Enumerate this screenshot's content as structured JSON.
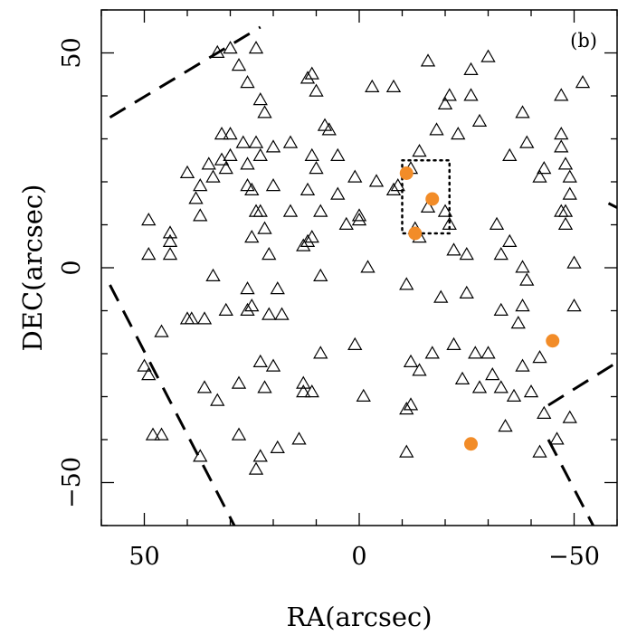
{
  "chart_data": {
    "type": "scatter",
    "panel_label": "(b)",
    "xlabel": "RA(arcsec)",
    "ylabel": "DEC(arcsec)",
    "xlim": [
      60,
      -60
    ],
    "ylim": [
      -60,
      60
    ],
    "x_inverted": true,
    "xticks": [
      {
        "value": 50,
        "label": "50"
      },
      {
        "value": 0,
        "label": "0"
      },
      {
        "value": -50,
        "label": "−50"
      }
    ],
    "yticks": [
      {
        "value": 50,
        "label": "50"
      },
      {
        "value": 0,
        "label": "0"
      },
      {
        "value": -50,
        "label": "−50"
      }
    ],
    "grid": false,
    "colors": {
      "axes": "#000000",
      "highlight": "#f28c28"
    },
    "series": [
      {
        "marker": "open-triangle",
        "color": "#000000",
        "points": [
          [
            33,
            50
          ],
          [
            30,
            51
          ],
          [
            28,
            47
          ],
          [
            26,
            43
          ],
          [
            24,
            51
          ],
          [
            23,
            39
          ],
          [
            22,
            36
          ],
          [
            12,
            44
          ],
          [
            11,
            45
          ],
          [
            10,
            41
          ],
          [
            8,
            33
          ],
          [
            7,
            32
          ],
          [
            -3,
            42
          ],
          [
            -8,
            42
          ],
          [
            -16,
            48
          ],
          [
            -21,
            40
          ],
          [
            -26,
            46
          ],
          [
            -26,
            40
          ],
          [
            -30,
            49
          ],
          [
            -52,
            43
          ],
          [
            -47,
            40
          ],
          [
            32,
            31
          ],
          [
            30,
            31
          ],
          [
            27,
            29
          ],
          [
            24,
            29
          ],
          [
            23,
            26
          ],
          [
            20,
            28
          ],
          [
            16,
            29
          ],
          [
            35,
            24
          ],
          [
            32,
            25
          ],
          [
            31,
            23
          ],
          [
            26,
            24
          ],
          [
            30,
            26
          ],
          [
            40,
            22
          ],
          [
            37,
            19
          ],
          [
            38,
            16
          ],
          [
            34,
            21
          ],
          [
            26,
            19
          ],
          [
            25,
            18
          ],
          [
            20,
            19
          ],
          [
            11,
            26
          ],
          [
            10,
            23
          ],
          [
            5,
            26
          ],
          [
            1,
            21
          ],
          [
            -4,
            20
          ],
          [
            -14,
            27
          ],
          [
            -18,
            32
          ],
          [
            -20,
            38
          ],
          [
            -23,
            31
          ],
          [
            -28,
            34
          ],
          [
            -35,
            26
          ],
          [
            -38,
            36
          ],
          [
            -39,
            29
          ],
          [
            -43,
            23
          ],
          [
            -42,
            21
          ],
          [
            -47,
            31
          ],
          [
            -47,
            28
          ],
          [
            -48,
            24
          ],
          [
            -49,
            21
          ],
          [
            -49,
            17
          ],
          [
            -12,
            23
          ],
          [
            -9,
            19
          ],
          [
            -47,
            13
          ],
          [
            -48,
            13
          ],
          [
            -48,
            10
          ],
          [
            49,
            11
          ],
          [
            44,
            8
          ],
          [
            44,
            6
          ],
          [
            49,
            3
          ],
          [
            44,
            3
          ],
          [
            37,
            12
          ],
          [
            24,
            13
          ],
          [
            25,
            7
          ],
          [
            23,
            13
          ],
          [
            22,
            9
          ],
          [
            21,
            3
          ],
          [
            16,
            13
          ],
          [
            13,
            5
          ],
          [
            12,
            6
          ],
          [
            11,
            7
          ],
          [
            12,
            18
          ],
          [
            9,
            13
          ],
          [
            5,
            17
          ],
          [
            3,
            10
          ],
          [
            0,
            12
          ],
          [
            0,
            11
          ],
          [
            -8,
            18
          ],
          [
            -13,
            9
          ],
          [
            -14,
            7
          ],
          [
            -16,
            14
          ],
          [
            -21,
            10
          ],
          [
            -22,
            4
          ],
          [
            -20,
            13
          ],
          [
            -25,
            3
          ],
          [
            -32,
            10
          ],
          [
            -33,
            3
          ],
          [
            -35,
            6
          ],
          [
            -38,
            0
          ],
          [
            -39,
            -3
          ],
          [
            -50,
            1
          ],
          [
            34,
            -2
          ],
          [
            40,
            -12
          ],
          [
            39,
            -12
          ],
          [
            36,
            -12
          ],
          [
            46,
            -15
          ],
          [
            31,
            -10
          ],
          [
            25,
            -9
          ],
          [
            26,
            -5
          ],
          [
            19,
            -5
          ],
          [
            26,
            -10
          ],
          [
            21,
            -11
          ],
          [
            18,
            -11
          ],
          [
            9,
            -2
          ],
          [
            -2,
            0
          ],
          [
            -11,
            -4
          ],
          [
            -19,
            -7
          ],
          [
            -25,
            -6
          ],
          [
            -38,
            -9
          ],
          [
            -37,
            -13
          ],
          [
            -33,
            -10
          ],
          [
            -50,
            -9
          ],
          [
            50,
            -23
          ],
          [
            49,
            -25
          ],
          [
            48,
            -39
          ],
          [
            46,
            -39
          ],
          [
            36,
            -28
          ],
          [
            33,
            -31
          ],
          [
            28,
            -27
          ],
          [
            23,
            -22
          ],
          [
            20,
            -23
          ],
          [
            22,
            -28
          ],
          [
            13,
            -27
          ],
          [
            13,
            -29
          ],
          [
            11,
            -29
          ],
          [
            9,
            -20
          ],
          [
            1,
            -18
          ],
          [
            -1,
            -30
          ],
          [
            -12,
            -32
          ],
          [
            -12,
            -22
          ],
          [
            -14,
            -24
          ],
          [
            -17,
            -20
          ],
          [
            -22,
            -18
          ],
          [
            -24,
            -26
          ],
          [
            -27,
            -20
          ],
          [
            -28,
            -28
          ],
          [
            -30,
            -20
          ],
          [
            -31,
            -25
          ],
          [
            -33,
            -28
          ],
          [
            -36,
            -30
          ],
          [
            -34,
            -37
          ],
          [
            -38,
            -23
          ],
          [
            -40,
            -29
          ],
          [
            -42,
            -21
          ],
          [
            -43,
            -34
          ],
          [
            -49,
            -35
          ],
          [
            -46,
            -40
          ],
          [
            37,
            -44
          ],
          [
            28,
            -39
          ],
          [
            23,
            -44
          ],
          [
            19,
            -42
          ],
          [
            24,
            -47
          ],
          [
            14,
            -40
          ],
          [
            -11,
            -33
          ],
          [
            -11,
            -43
          ],
          [
            -42,
            -43
          ]
        ]
      },
      {
        "marker": "filled-circle",
        "color": "#f28c28",
        "points": [
          [
            -11,
            22
          ],
          [
            -17,
            16
          ],
          [
            -13,
            8
          ],
          [
            -26,
            -41
          ],
          [
            -45,
            -17
          ]
        ]
      }
    ],
    "annotations": [
      {
        "type": "dotted-box",
        "x_range": [
          -10,
          -21
        ],
        "y_range": [
          25,
          8
        ]
      }
    ],
    "boundary_lines": [
      {
        "style": "dashed",
        "points": [
          [
            58,
            35
          ],
          [
            23,
            56
          ]
        ]
      },
      {
        "style": "dashed",
        "points": [
          [
            58,
            -4
          ],
          [
            27,
            -64
          ]
        ]
      },
      {
        "style": "dashed",
        "points": [
          [
            -60,
            14
          ],
          [
            -58,
            15
          ]
        ]
      },
      {
        "style": "dashed",
        "points": [
          [
            -44,
            -32
          ],
          [
            -60,
            -22
          ]
        ]
      },
      {
        "style": "dashed",
        "points": [
          [
            -44,
            -40
          ],
          [
            -56,
            -63
          ]
        ]
      }
    ]
  }
}
